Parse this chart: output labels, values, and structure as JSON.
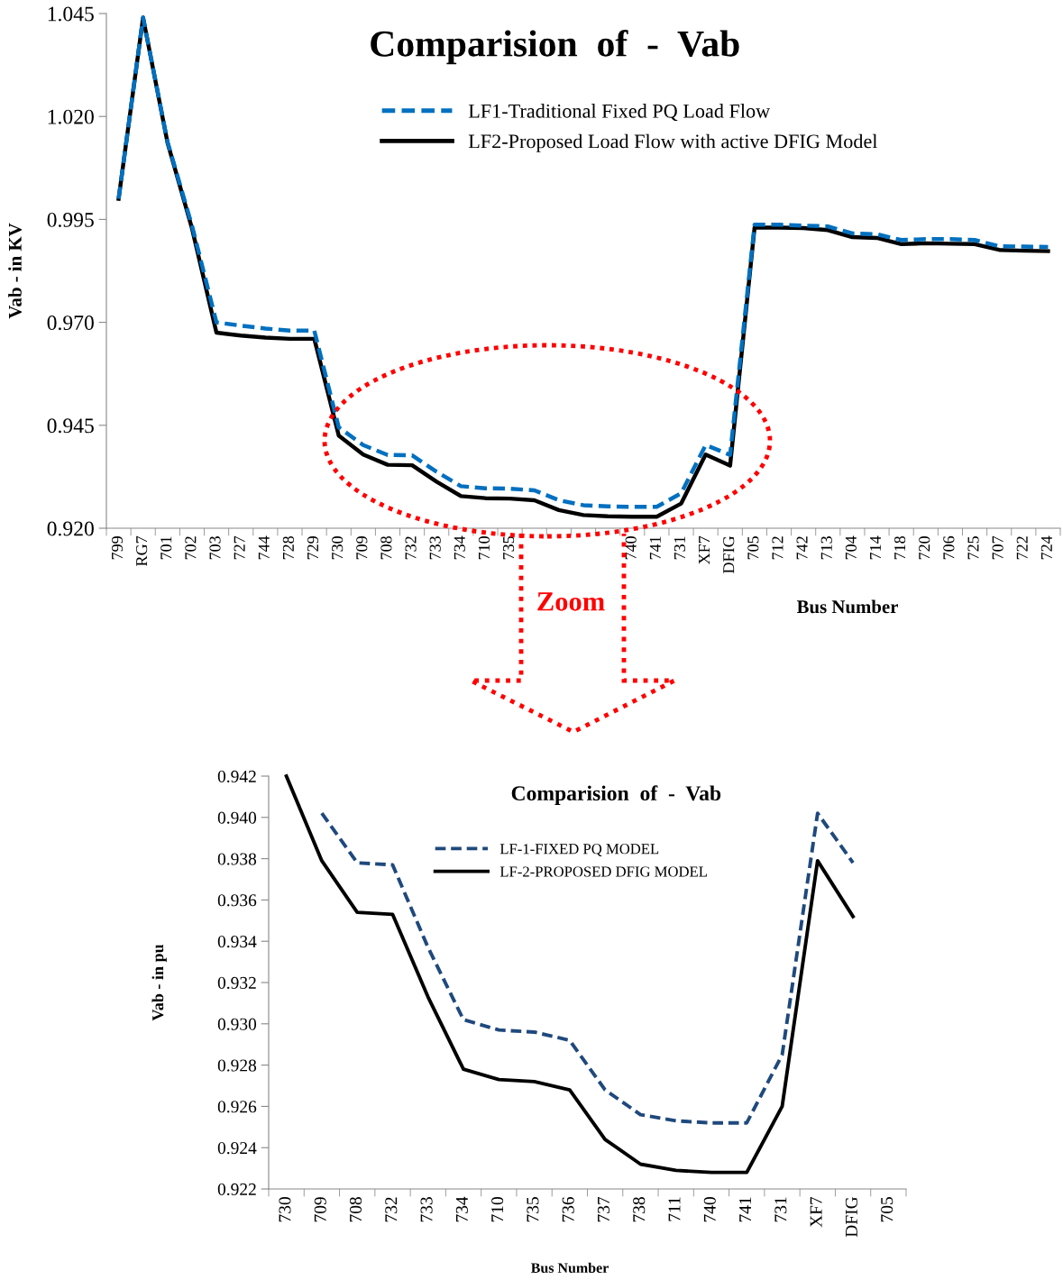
{
  "chart_data": [
    {
      "type": "line",
      "title": "Comparision  of  -  Vab",
      "xlabel": "Bus Number",
      "ylabel": "Vab - in KV",
      "legend": "top",
      "grid": false,
      "marker": "none",
      "categories": [
        "799",
        "RG7",
        "701",
        "702",
        "703",
        "727",
        "744",
        "728",
        "729",
        "730",
        "709",
        "708",
        "732",
        "733",
        "734",
        "710",
        "735",
        null,
        null,
        null,
        null,
        "740",
        "741",
        "731",
        "XF7",
        "DFIG",
        "705",
        "712",
        "742",
        "713",
        "704",
        "714",
        "718",
        "720",
        "706",
        "725",
        "707",
        "722",
        "724"
      ],
      "ylim": [
        0.92,
        1.045
      ],
      "yticks": [
        {
          "value": 0.92,
          "label": "0.920"
        },
        {
          "value": 0.945,
          "label": "0.945"
        },
        {
          "value": 0.97,
          "label": "0.970"
        },
        {
          "value": 0.995,
          "label": "0.995"
        },
        {
          "value": 1.02,
          "label": "1.020"
        },
        {
          "value": 1.045,
          "label": "1.045"
        }
      ],
      "annotations": [
        "Zoom"
      ],
      "series": [
        {
          "name": "LF1-Traditional Fixed PQ Load Flow",
          "color": "#0070c0",
          "line_style": "dashed",
          "values": [
            1.0,
            1.044,
            1.0138,
            0.9935,
            0.97,
            0.9692,
            0.9685,
            0.968,
            0.968,
            0.9445,
            0.9402,
            0.9378,
            0.9377,
            0.9337,
            0.9302,
            0.9297,
            0.9296,
            0.9292,
            0.9268,
            0.9256,
            0.9253,
            0.9252,
            0.9252,
            0.9285,
            0.9402,
            0.9378,
            0.9937,
            0.9937,
            0.9935,
            0.9933,
            0.9916,
            0.9914,
            0.99,
            0.9902,
            0.9902,
            0.99,
            0.9885,
            0.9884,
            0.9883
          ]
        },
        {
          "name": "LF2-Proposed Load Flow with active DFIG Model",
          "color": "#000000",
          "line_style": "solid",
          "values": [
            1.0,
            1.044,
            1.0136,
            0.9928,
            0.9675,
            0.9668,
            0.9663,
            0.966,
            0.966,
            0.9425,
            0.9379,
            0.9354,
            0.9353,
            0.9313,
            0.9278,
            0.9273,
            0.9272,
            0.9268,
            0.9244,
            0.9232,
            0.9229,
            0.9228,
            0.9228,
            0.926,
            0.9379,
            0.9352,
            0.993,
            0.993,
            0.9929,
            0.9924,
            0.9907,
            0.9905,
            0.989,
            0.9892,
            0.9891,
            0.989,
            0.9876,
            0.9874,
            0.9873
          ]
        }
      ]
    },
    {
      "type": "line",
      "title": "Comparision  of  -  Vab",
      "xlabel": "Bus Number",
      "ylabel": "Vab - in pu",
      "legend": "top right",
      "grid": false,
      "marker": "none",
      "categories": [
        "730",
        "709",
        "708",
        "732",
        "733",
        "734",
        "710",
        "735",
        "736",
        "737",
        "738",
        "711",
        "740",
        "741",
        "731",
        "XF7",
        "DFIG",
        "705"
      ],
      "ylim": [
        0.922,
        0.942
      ],
      "yticks": [
        {
          "value": 0.922,
          "label": "0.922"
        },
        {
          "value": 0.924,
          "label": "0.924"
        },
        {
          "value": 0.926,
          "label": "0.926"
        },
        {
          "value": 0.928,
          "label": "0.928"
        },
        {
          "value": 0.93,
          "label": "0.930"
        },
        {
          "value": 0.932,
          "label": "0.932"
        },
        {
          "value": 0.934,
          "label": "0.934"
        },
        {
          "value": 0.936,
          "label": "0.936"
        },
        {
          "value": 0.938,
          "label": "0.938"
        },
        {
          "value": 0.94,
          "label": "0.940"
        },
        {
          "value": 0.942,
          "label": "0.942"
        }
      ],
      "series": [
        {
          "name": "LF-1-FIXED PQ MODEL",
          "color": "#1f497d",
          "line_style": "dashed",
          "values": [
            null,
            0.9402,
            0.9378,
            0.9377,
            0.9337,
            0.9302,
            0.9297,
            0.9296,
            0.9292,
            0.9268,
            0.9256,
            0.9253,
            0.9252,
            0.9252,
            0.9285,
            0.9402,
            0.9378,
            null
          ]
        },
        {
          "name": "LF-2-PROPOSED DFIG MODEL",
          "color": "#000000",
          "line_style": "solid",
          "values": [
            0.942,
            0.9379,
            0.9354,
            0.9353,
            0.9313,
            0.9278,
            0.9273,
            0.9272,
            0.9268,
            0.9244,
            0.9232,
            0.9229,
            0.9228,
            0.9228,
            0.926,
            0.9379,
            0.9352,
            null
          ]
        }
      ]
    }
  ]
}
